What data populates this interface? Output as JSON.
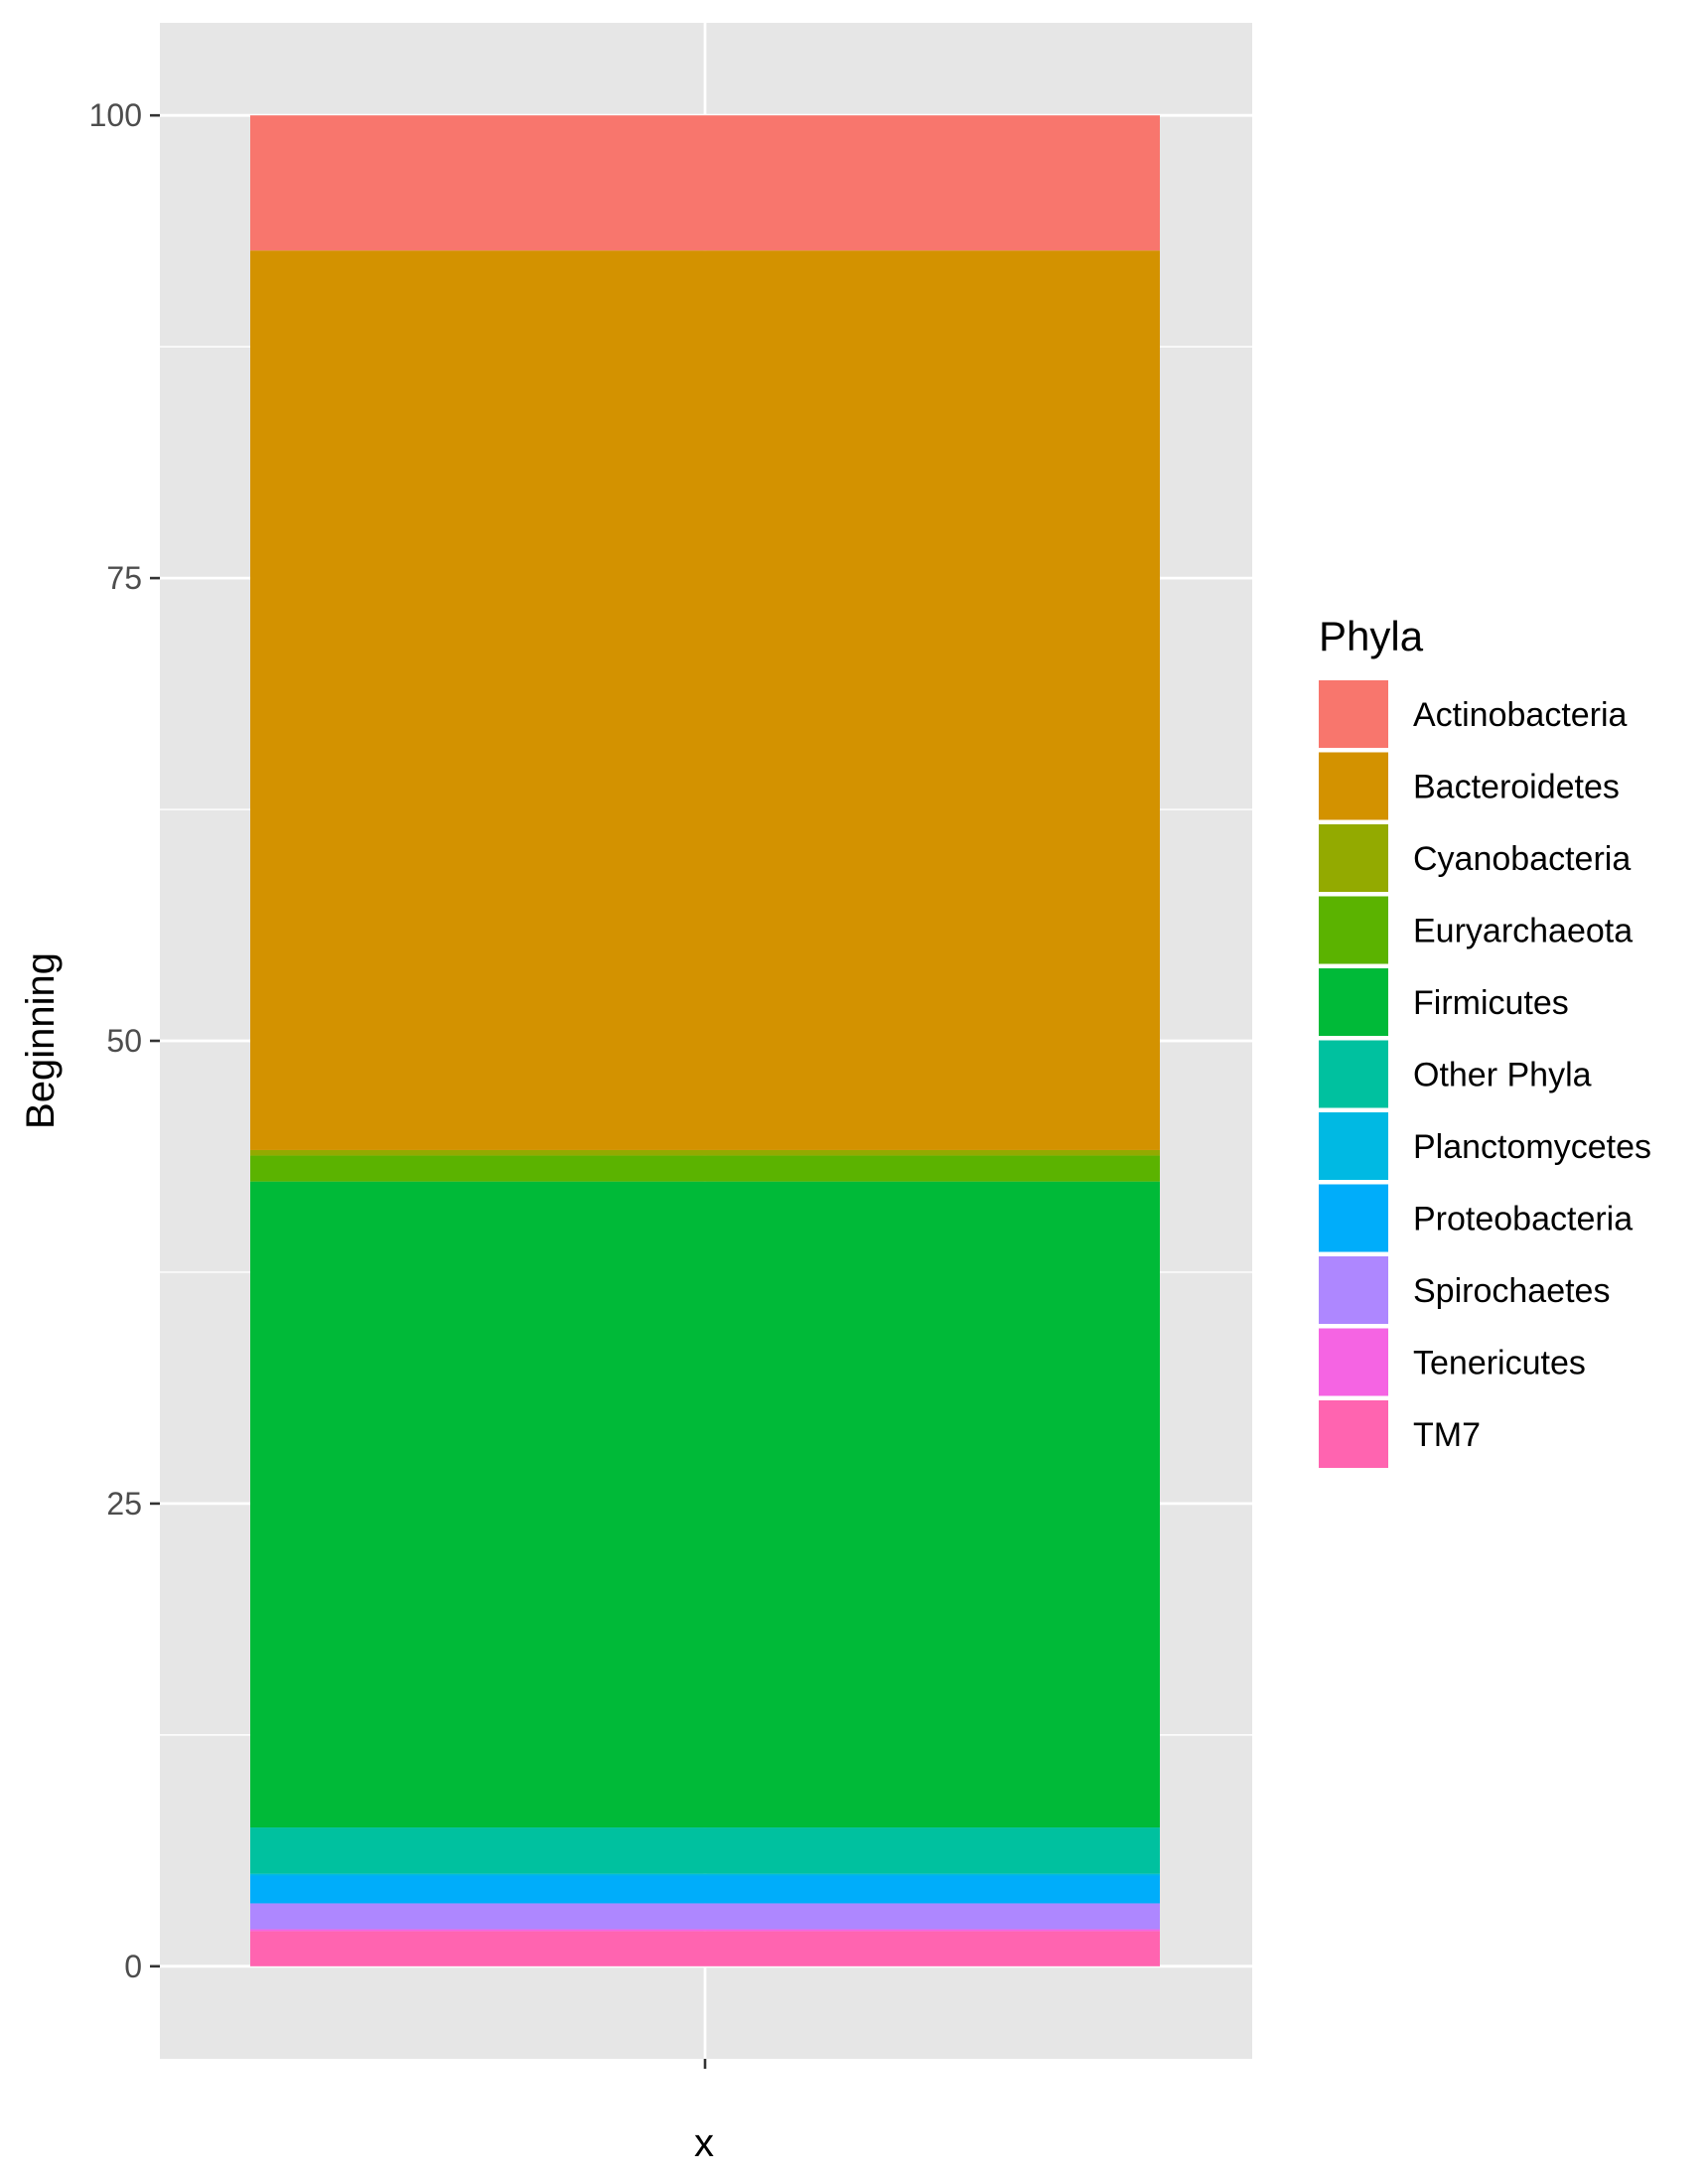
{
  "chart_data": {
    "type": "bar",
    "stacked": true,
    "categories": [
      ""
    ],
    "xlabel": "x",
    "ylabel": "Beginning",
    "ylim": [
      -5,
      105
    ],
    "yticks": [
      0,
      25,
      50,
      75,
      100
    ],
    "y_tick_labels": [
      "0",
      "25",
      "50",
      "75",
      "100"
    ],
    "grid": true,
    "panel_background": "#e6e6e6",
    "legend": {
      "title": "Phyla",
      "position": "right"
    },
    "series": [
      {
        "name": "Actinobacteria",
        "color": "#F8766D",
        "values": [
          7.3
        ]
      },
      {
        "name": "Bacteroidetes",
        "color": "#D39200",
        "values": [
          48.6
        ]
      },
      {
        "name": "Cyanobacteria",
        "color": "#93AA00",
        "values": [
          0.3
        ]
      },
      {
        "name": "Euryarchaeota",
        "color": "#5BB300",
        "values": [
          1.4
        ]
      },
      {
        "name": "Firmicutes",
        "color": "#00BA38",
        "values": [
          34.9
        ]
      },
      {
        "name": "Other Phyla",
        "color": "#00C19F",
        "values": [
          2.5
        ]
      },
      {
        "name": "Planctomycetes",
        "color": "#00B9E3",
        "values": [
          0.1
        ]
      },
      {
        "name": "Proteobacteria",
        "color": "#00ADFA",
        "values": [
          1.5
        ]
      },
      {
        "name": "Spirochaetes",
        "color": "#AE87FF",
        "values": [
          1.4
        ]
      },
      {
        "name": "Tenericutes",
        "color": "#F564E3",
        "values": [
          0.1
        ]
      },
      {
        "name": "TM7",
        "color": "#FF64B0",
        "values": [
          1.9
        ]
      }
    ]
  }
}
